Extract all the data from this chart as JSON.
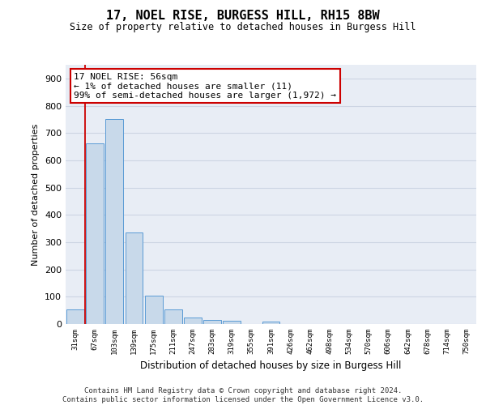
{
  "title1": "17, NOEL RISE, BURGESS HILL, RH15 8BW",
  "title2": "Size of property relative to detached houses in Burgess Hill",
  "xlabel": "Distribution of detached houses by size in Burgess Hill",
  "ylabel": "Number of detached properties",
  "bin_labels": [
    "31sqm",
    "67sqm",
    "103sqm",
    "139sqm",
    "175sqm",
    "211sqm",
    "247sqm",
    "283sqm",
    "319sqm",
    "355sqm",
    "391sqm",
    "426sqm",
    "462sqm",
    "498sqm",
    "534sqm",
    "570sqm",
    "606sqm",
    "642sqm",
    "678sqm",
    "714sqm",
    "750sqm"
  ],
  "bar_values": [
    52,
    662,
    750,
    335,
    105,
    53,
    25,
    15,
    12,
    0,
    8,
    0,
    0,
    0,
    0,
    0,
    0,
    0,
    0,
    0,
    0
  ],
  "bar_fill": "#c8d9ea",
  "bar_edge": "#5b9bd5",
  "vline_color": "#cc0000",
  "vline_x": 0.5,
  "annot_text": "17 NOEL RISE: 56sqm\n← 1% of detached houses are smaller (11)\n99% of semi-detached houses are larger (1,972) →",
  "annot_bg": "#ffffff",
  "annot_edge": "#cc0000",
  "grid_color": "#cdd5e3",
  "plot_bg": "#e8edf5",
  "ylim": [
    0,
    950
  ],
  "yticks": [
    0,
    100,
    200,
    300,
    400,
    500,
    600,
    700,
    800,
    900
  ],
  "footer": "Contains HM Land Registry data © Crown copyright and database right 2024.\nContains public sector information licensed under the Open Government Licence v3.0.",
  "title_fontsize": 11,
  "subtitle_fontsize": 8.5,
  "annot_fontsize": 8,
  "footer_fontsize": 6.5,
  "xlabel_fontsize": 8.5,
  "ylabel_fontsize": 8
}
